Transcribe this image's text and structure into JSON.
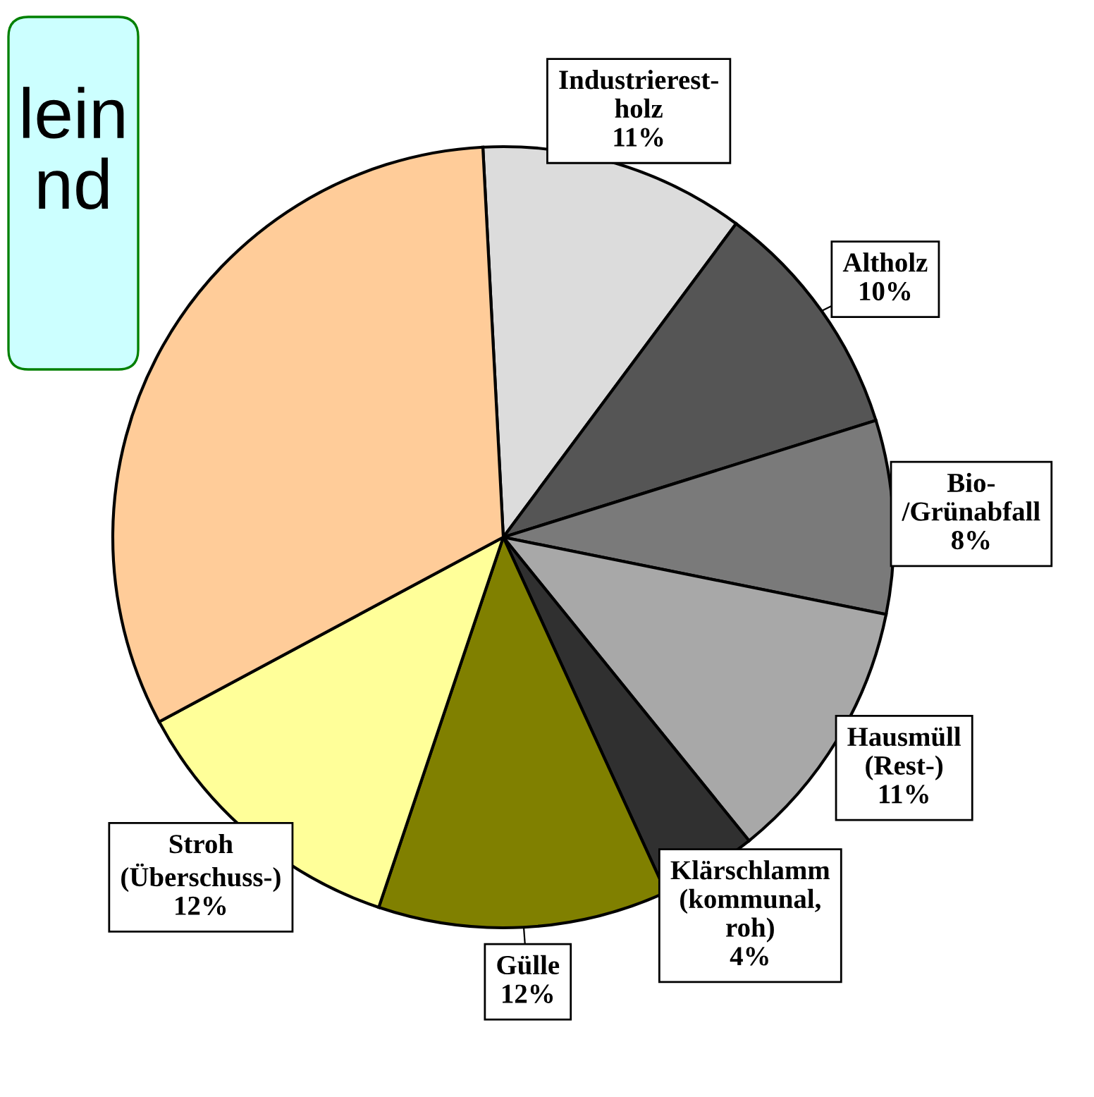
{
  "chart_data": {
    "type": "pie",
    "categories": [
      "Industrierest-\nholz",
      "Altholz",
      "Bio-\n/Grünabfall",
      "Hausmüll\n(Rest-)",
      "Klärschlamm\n(kommunal,\nroh)",
      "Gülle",
      "Stroh\n(Überschuss-)",
      null
    ],
    "values": [
      11,
      10,
      8,
      11,
      4,
      12,
      12,
      32
    ],
    "value_labels": [
      "11%",
      "10%",
      "8%",
      "11%",
      "4%",
      "12%",
      "12%",
      null
    ],
    "colors": [
      "#dcdcdc",
      "#555555",
      "#7a7a7a",
      "#a8a8a8",
      "#303030",
      "#808000",
      "#ffff99",
      "#ffcc99"
    ],
    "annotations": [
      "lein\nnd"
    ]
  }
}
